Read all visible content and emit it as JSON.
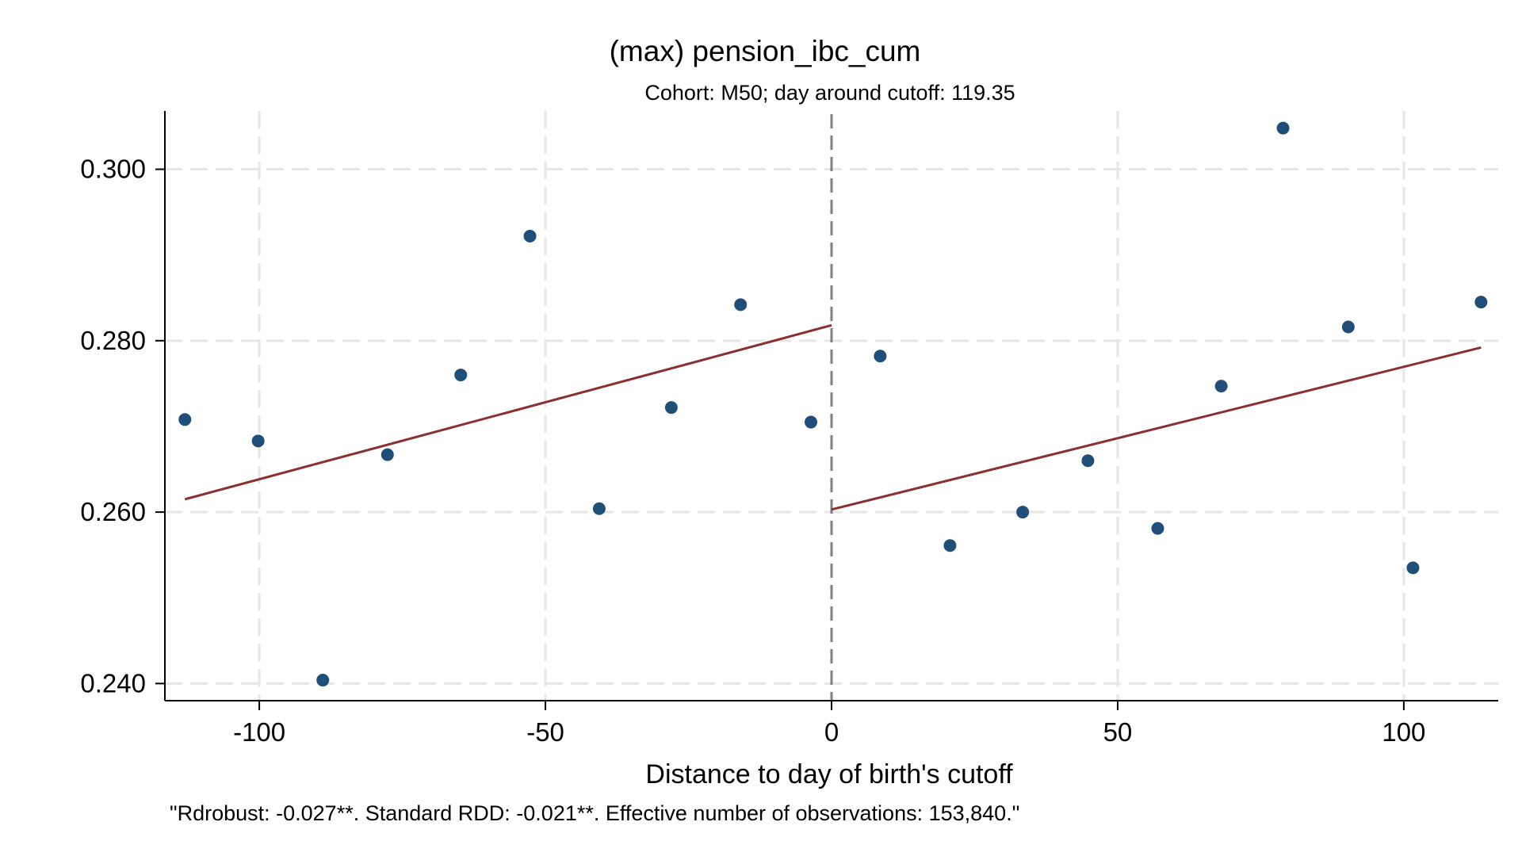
{
  "chart_data": {
    "type": "scatter",
    "title": "(max) pension_ibc_cum",
    "subtitle": "Cohort: M50; day around cutoff:  119.35",
    "xlabel": "Distance to day of birth's cutoff",
    "ylabel": "",
    "note": "\"Rdrobust: -0.027**. Standard RDD: -0.021**. Effective number of observations: 153,840.\"",
    "xlim": [
      -116.5,
      116.5
    ],
    "ylim": [
      0.238,
      0.3068
    ],
    "x_ticks": [
      -100,
      -50,
      0,
      50,
      100
    ],
    "x_tick_labels": [
      "-100",
      "-50",
      "0",
      "50",
      "100"
    ],
    "y_ticks": [
      0.24,
      0.26,
      0.28,
      0.3
    ],
    "y_tick_labels": [
      "0.240",
      "0.260",
      "0.280",
      "0.300"
    ],
    "grid": true,
    "cutoff_x": 0,
    "colors": {
      "points": "#1f4e79",
      "fit_line": "#8b2f2f",
      "cutoff_line": "#7f7f7f",
      "grid": "#e6e6e6",
      "axis": "#000000"
    },
    "series": [
      {
        "type": "scatter",
        "x": [
          -113.0,
          -100.2,
          -88.9,
          -77.6,
          -64.8,
          -52.7,
          -40.6,
          -28.0,
          -15.9,
          -3.6,
          8.5,
          20.7,
          33.4,
          44.8,
          57.0,
          68.1,
          78.9,
          90.3,
          101.6,
          113.5
        ],
        "y": [
          0.2708,
          0.2683,
          0.2404,
          0.2667,
          0.276,
          0.2922,
          0.2604,
          0.2722,
          0.2842,
          0.2705,
          0.2782,
          0.2561,
          0.26,
          0.266,
          0.2581,
          0.2747,
          0.3048,
          0.2816,
          0.2535,
          0.2845
        ]
      },
      {
        "type": "line",
        "segments": [
          {
            "x": [
              -113.0,
              0.0
            ],
            "y": [
              0.2615,
              0.2818
            ]
          },
          {
            "x": [
              0.0,
              113.5
            ],
            "y": [
              0.2603,
              0.2792
            ]
          }
        ]
      }
    ]
  }
}
